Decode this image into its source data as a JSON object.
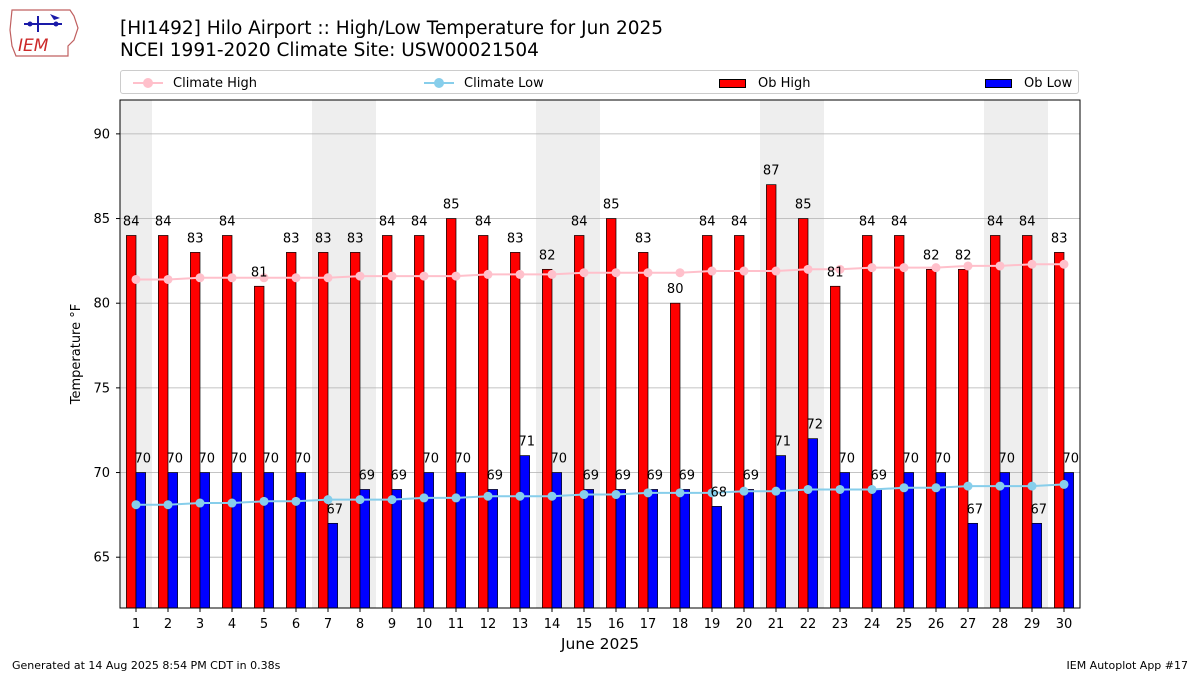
{
  "header": {
    "logo_text": "IEM",
    "title": "[HI1492] Hilo Airport :: High/Low Temperature for Jun 2025",
    "subtitle": "NCEI 1991-2020 Climate Site: USW00021504"
  },
  "legend": {
    "climate_high": "Climate High",
    "climate_low": "Climate Low",
    "ob_high": "Ob High",
    "ob_low": "Ob Low"
  },
  "colors": {
    "climate_high": "#ffc0cb",
    "climate_low": "#87ceeb",
    "ob_high": "#ff0000",
    "ob_low": "#0000ff",
    "weekend_shade": "#eeeeee",
    "grid": "#b0b0b0"
  },
  "footer": {
    "left": "Generated at 14 Aug 2025 8:54 PM CDT in 0.38s",
    "right": "IEM Autoplot App #17"
  },
  "chart_data": {
    "type": "bar",
    "xlabel": "June 2025",
    "ylabel": "Temperature °F",
    "ylim": [
      62,
      92
    ],
    "yticks": [
      65,
      70,
      75,
      80,
      85,
      90
    ],
    "grid": "horizontal",
    "legend_position": "top",
    "categories": [
      1,
      2,
      3,
      4,
      5,
      6,
      7,
      8,
      9,
      10,
      11,
      12,
      13,
      14,
      15,
      16,
      17,
      18,
      19,
      20,
      21,
      22,
      23,
      24,
      25,
      26,
      27,
      28,
      29,
      30
    ],
    "shaded_days": [
      1,
      7,
      8,
      14,
      15,
      21,
      22,
      28,
      29
    ],
    "series": [
      {
        "name": "Ob High",
        "kind": "bar",
        "values": [
          84,
          84,
          83,
          84,
          81,
          83,
          83,
          83,
          84,
          84,
          85,
          84,
          83,
          82,
          84,
          85,
          83,
          80,
          84,
          84,
          87,
          85,
          81,
          84,
          84,
          82,
          82,
          84,
          84,
          83
        ]
      },
      {
        "name": "Ob Low",
        "kind": "bar",
        "values": [
          70,
          70,
          70,
          70,
          70,
          70,
          67,
          69,
          69,
          70,
          70,
          69,
          71,
          70,
          69,
          69,
          69,
          69,
          68,
          69,
          71,
          72,
          70,
          69,
          70,
          70,
          67,
          70,
          67,
          70
        ]
      },
      {
        "name": "Climate High",
        "kind": "line",
        "values": [
          81.4,
          81.4,
          81.5,
          81.5,
          81.5,
          81.5,
          81.5,
          81.6,
          81.6,
          81.6,
          81.6,
          81.7,
          81.7,
          81.7,
          81.8,
          81.8,
          81.8,
          81.8,
          81.9,
          81.9,
          81.9,
          82.0,
          82.0,
          82.1,
          82.1,
          82.1,
          82.2,
          82.2,
          82.3,
          82.3
        ]
      },
      {
        "name": "Climate Low",
        "kind": "line",
        "values": [
          68.1,
          68.1,
          68.2,
          68.2,
          68.3,
          68.3,
          68.4,
          68.4,
          68.4,
          68.5,
          68.5,
          68.6,
          68.6,
          68.6,
          68.7,
          68.7,
          68.8,
          68.8,
          68.8,
          68.9,
          68.9,
          69.0,
          69.0,
          69.0,
          69.1,
          69.1,
          69.2,
          69.2,
          69.2,
          69.3
        ]
      }
    ]
  }
}
